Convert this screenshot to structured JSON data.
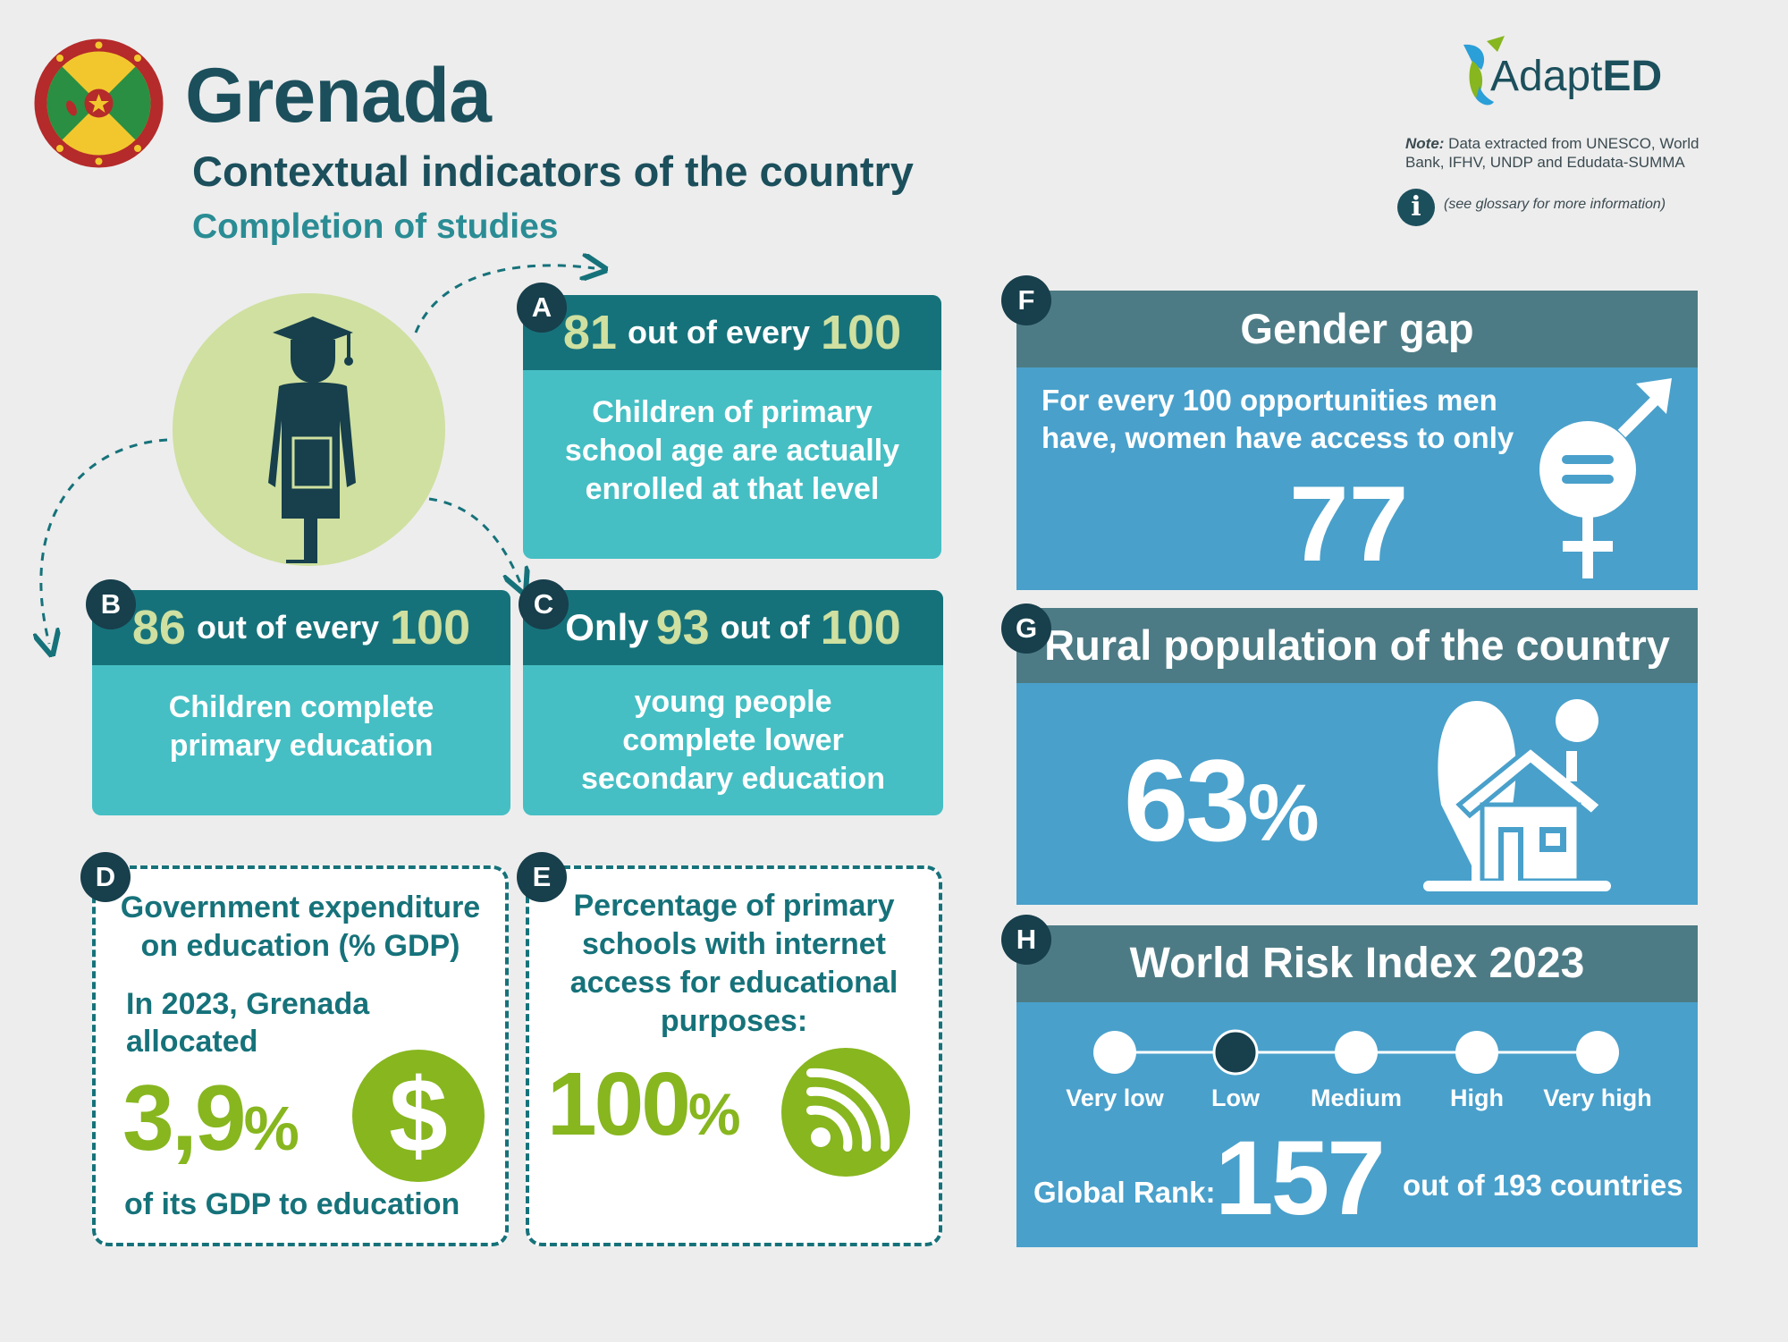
{
  "header": {
    "country": "Grenada",
    "subtitle": "Contextual indicators of the country",
    "section": "Completion of studies"
  },
  "logo": {
    "text_light": "Adapt",
    "text_bold": "ED"
  },
  "note": {
    "label": "Note:",
    "text": " Data extracted from UNESCO, World Bank, IFHV, UNDP and Edudata-SUMMA",
    "glossary_icon": "i",
    "glossary": "(see glossary for more information)"
  },
  "icons": {
    "flag": "grenada-flag-icon",
    "graduate": "graduate-icon",
    "dollar": "dollar-icon",
    "wifi": "wifi-icon",
    "gender": "gender-icon",
    "rural": "rural-house-icon"
  },
  "colors": {
    "dark_teal": "#16727a",
    "teal": "#45bfc4",
    "green": "#87b61f",
    "light_green": "#cfe0a0",
    "navy": "#1c4f5c",
    "blue": "#49a0cb",
    "slate": "#4d7b85"
  },
  "indicators": {
    "a": {
      "letter": "A",
      "value": "81",
      "middle": "out of every",
      "total": "100",
      "text": "Children of primary school age are actually enrolled at that level"
    },
    "b": {
      "letter": "B",
      "value": "86",
      "middle": "out of every",
      "total": "100",
      "text": "Children complete primary education"
    },
    "c": {
      "letter": "C",
      "prefix": "Only",
      "value": "93",
      "middle": "out of",
      "total": "100",
      "text": "young people complete lower secondary education"
    },
    "d": {
      "letter": "D",
      "title": "Government expenditure on education (% GDP)",
      "intro": "In 2023, Grenada allocated",
      "value": "3,9",
      "unit": "%",
      "symbol": "$",
      "outro": "of its GDP to education"
    },
    "e": {
      "letter": "E",
      "title": "Percentage of primary schools with internet access for educational purposes:",
      "value": "100",
      "unit": "%"
    },
    "f": {
      "letter": "F",
      "title": "Gender gap",
      "text": "For every 100 opportunities men have, women have access to only",
      "value": "77"
    },
    "g": {
      "letter": "G",
      "title": "Rural population of the country",
      "value": "63",
      "unit": "%"
    },
    "h": {
      "letter": "H",
      "title": "World Risk Index 2023",
      "levels": [
        "Very low",
        "Low",
        "Medium",
        "High",
        "Very high"
      ],
      "selected_level": "Low",
      "rank_label": "Global Rank:",
      "rank": "157",
      "rank_total": "out of 193 countries"
    }
  }
}
